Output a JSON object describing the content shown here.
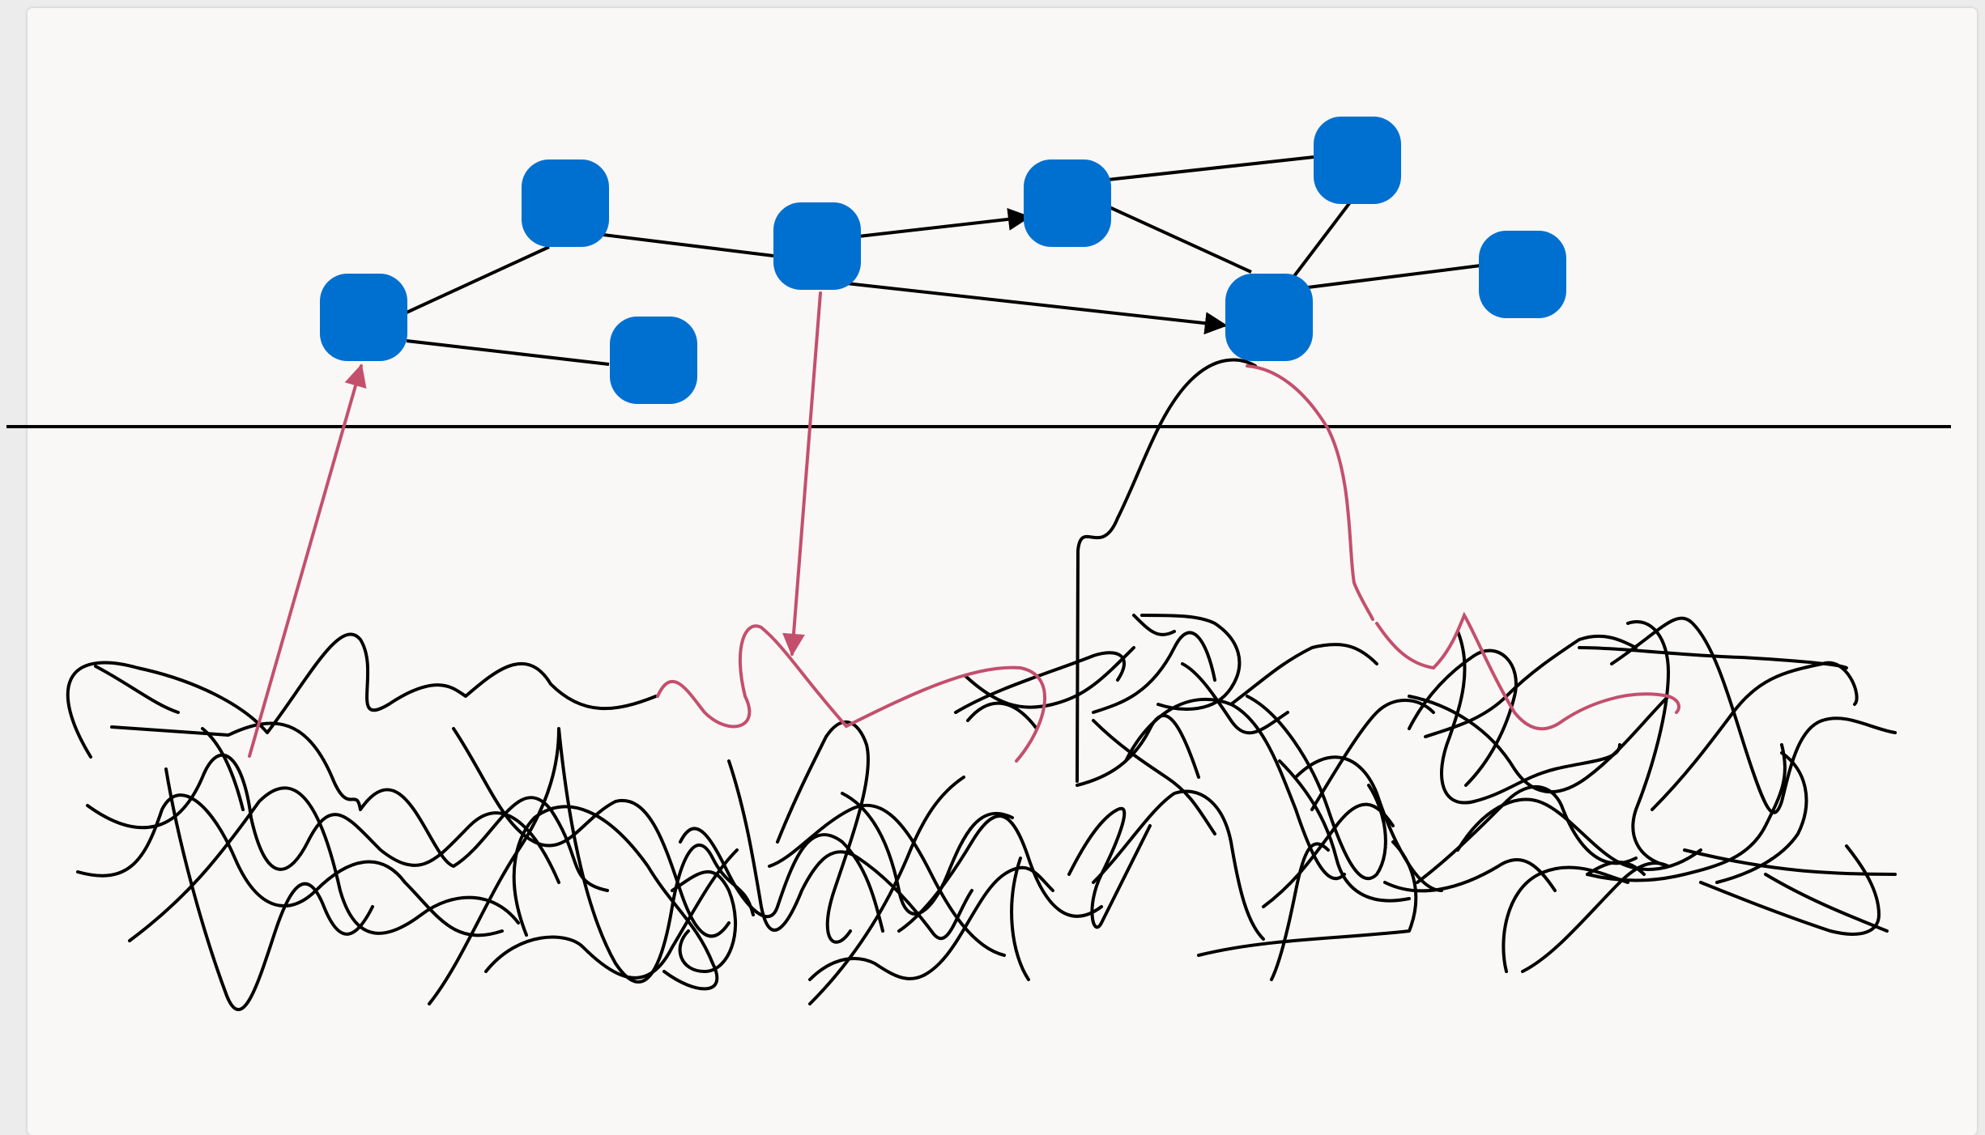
{
  "colors": {
    "background": "#ececec",
    "canvas": "#f9f8f7",
    "node_fill": "#0070d0",
    "edge": "#000000",
    "highlight": "#c44f6c"
  },
  "nodes": [
    {
      "id": "n1"
    },
    {
      "id": "n2"
    },
    {
      "id": "n3"
    },
    {
      "id": "n4"
    },
    {
      "id": "n5"
    },
    {
      "id": "n6"
    },
    {
      "id": "n7"
    },
    {
      "id": "n8"
    }
  ],
  "edges": [
    {
      "from": "n2",
      "to": "n1",
      "directed": false
    },
    {
      "from": "n1",
      "to": "n3",
      "directed": false
    },
    {
      "from": "n2",
      "to": "n4",
      "directed": false
    },
    {
      "from": "n4",
      "to": "n5",
      "directed": true
    },
    {
      "from": "n4",
      "to": "n7",
      "directed": true
    },
    {
      "from": "n5",
      "to": "n6",
      "directed": false
    },
    {
      "from": "n5",
      "to": "n7",
      "directed": false
    },
    {
      "from": "n6",
      "to": "n7",
      "directed": false
    },
    {
      "from": "n7",
      "to": "n8",
      "directed": false
    }
  ],
  "links": [
    {
      "node": "n1",
      "direction": "up"
    },
    {
      "node": "n4",
      "direction": "down"
    },
    {
      "node": "n7",
      "direction": "loop"
    }
  ]
}
